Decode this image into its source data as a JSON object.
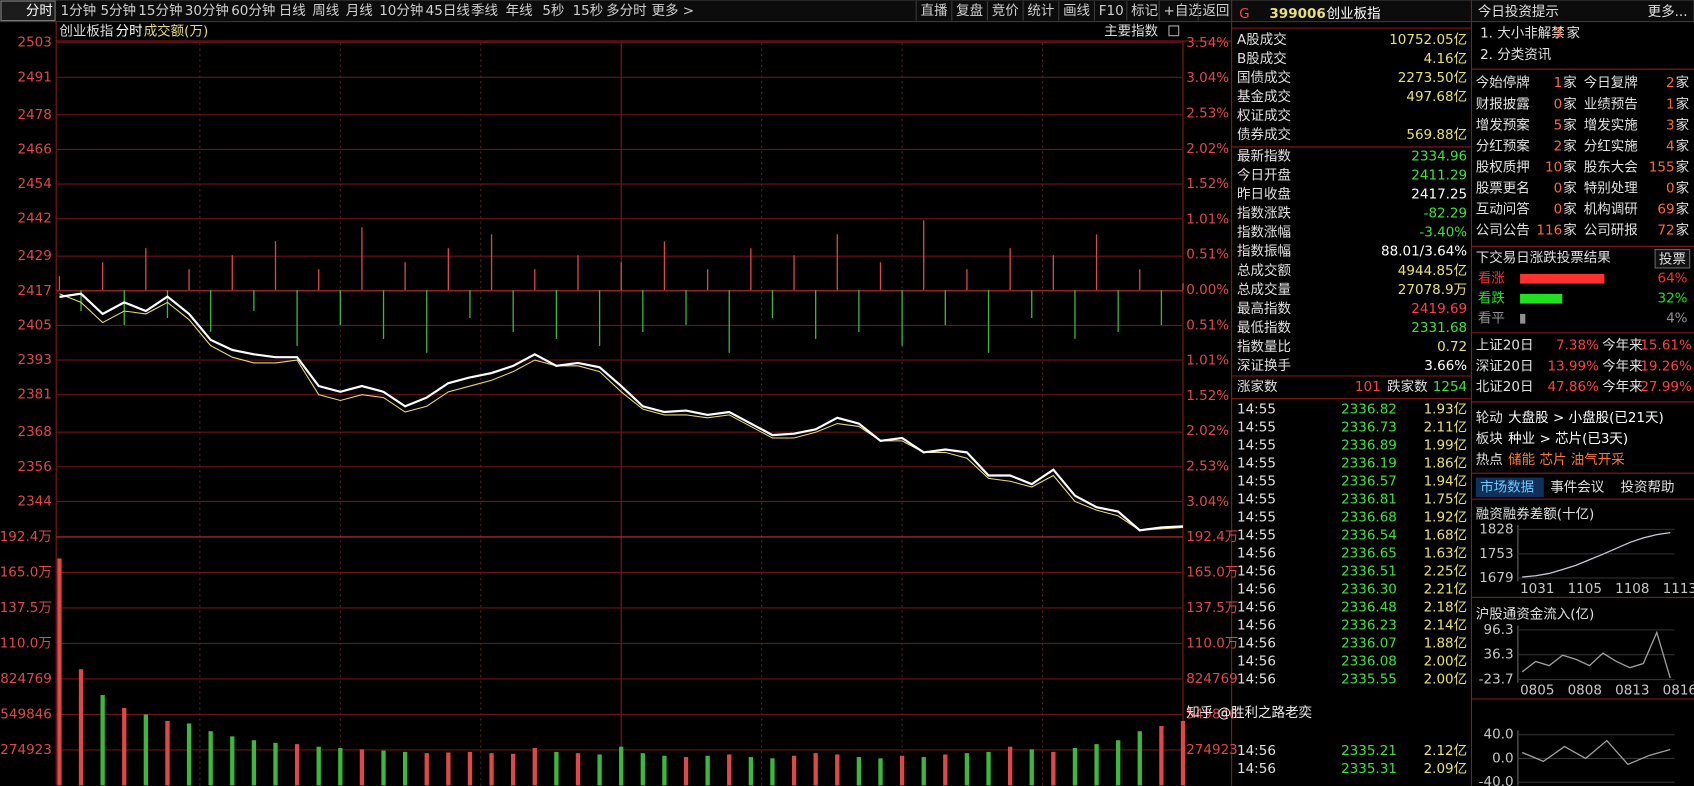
{
  "toolbar": {
    "periods": [
      "分时",
      "1分钟",
      "5分钟",
      "15分钟",
      "30分钟",
      "60分钟",
      "日线",
      "周线",
      "月线",
      "10分钟",
      "45日线",
      "季线",
      "年线",
      "5秒",
      "15秒",
      "多分时",
      "更多 >"
    ],
    "tools": [
      "直播",
      "复盘",
      "竞价",
      "统计",
      "画线",
      "F10",
      "标记",
      "+自选",
      "返回"
    ]
  },
  "chart_data": {
    "type": "line",
    "title": "创业板指",
    "subtitle": "分时",
    "volume_label": "成交额(万)",
    "index_button": "主要指数",
    "ylim": [
      2331.7,
      2502.8
    ],
    "yticks": [
      2503,
      2491,
      2478,
      2466,
      2454,
      2442,
      2429,
      2417,
      2405,
      2393,
      2381,
      2368,
      2356,
      2344
    ],
    "y2lim": [
      -3.54,
      3.54
    ],
    "y2ticks": [
      {
        "value": 3.54,
        "label": "3.54%"
      },
      {
        "value": 3.04,
        "label": "3.04%"
      },
      {
        "value": 2.53,
        "label": "2.53%"
      },
      {
        "value": 2.02,
        "label": "2.02%"
      },
      {
        "value": 1.52,
        "label": "1.52%"
      },
      {
        "value": 1.01,
        "label": "1.01%"
      },
      {
        "value": 0.51,
        "label": "0.51%"
      },
      {
        "value": 0,
        "label": "0.00%"
      },
      {
        "value": -0.51,
        "label": "0.51%"
      },
      {
        "value": -1.01,
        "label": "1.01%"
      },
      {
        "value": -1.52,
        "label": "1.52%"
      },
      {
        "value": -2.02,
        "label": "2.02%"
      },
      {
        "value": -2.53,
        "label": "2.53%"
      },
      {
        "value": -3.04,
        "label": "3.04%"
      }
    ],
    "grid": true,
    "series": [
      {
        "color": "#ffffff",
        "values": [
          2414.9,
          2416,
          2409,
          2413,
          2410,
          2415,
          2409,
          2400,
          2396.5,
          2395,
          2394,
          2394,
          2384,
          2382,
          2384,
          2382,
          2377,
          2380,
          2385,
          2387,
          2388.5,
          2391,
          2395,
          2391,
          2392,
          2390.5,
          2384,
          2377,
          2375,
          2375.5,
          2374,
          2375,
          2371,
          2367,
          2367.5,
          2369,
          2373,
          2371,
          2365,
          2366,
          2361,
          2362,
          2361,
          2353,
          2353,
          2350,
          2355,
          2346,
          2342,
          2340.5,
          2334,
          2335,
          2335.4
        ]
      },
      {
        "color": "#e8d870",
        "values": [
          2416,
          2413,
          2406,
          2410,
          2409,
          2413,
          2407,
          2398,
          2394,
          2392,
          2392,
          2393,
          2381,
          2379,
          2381,
          2380,
          2375,
          2377,
          2382,
          2384,
          2386,
          2389,
          2393,
          2391,
          2391,
          2389,
          2382,
          2376,
          2374,
          2374,
          2373,
          2374,
          2370,
          2366,
          2366,
          2368,
          2371,
          2370,
          2365,
          2365,
          2361,
          2361,
          2359,
          2352,
          2351,
          2349,
          2353,
          2344,
          2341,
          2339,
          2334,
          2334.5,
          2335
        ]
      }
    ],
    "breadth": {
      "up_color": "#e04848",
      "down_color": "#3cb83c",
      "values": [
        0.2,
        -0.3,
        0.4,
        -0.5,
        0.6,
        -0.4,
        0.3,
        -0.6,
        0.5,
        -0.3,
        0.7,
        -0.8,
        0.3,
        -0.5,
        0.9,
        -0.7,
        0.4,
        -0.9,
        0.6,
        -0.4,
        0.8,
        -0.6,
        0.3,
        -0.7,
        0.5,
        -0.8,
        0.4,
        -0.6,
        0.7,
        -0.5,
        0.3,
        -0.9,
        0.6,
        -0.4,
        0.5,
        -0.7,
        0.8,
        -0.6,
        0.4,
        -0.8,
        1.0,
        -0.5,
        0.3,
        -0.9,
        0.6,
        -0.4,
        0.5,
        -0.7,
        0.8,
        -0.6,
        0.3,
        -0.5,
        0.1
      ]
    },
    "volume": {
      "up_color": "#e04848",
      "down_color": "#3cb83c",
      "ylim": [
        0,
        1924461
      ],
      "yticks": [
        {
          "value": 1924461,
          "label": "192.4万"
        },
        {
          "value": 1649538,
          "label": "165.0万"
        },
        {
          "value": 1374615,
          "label": "137.5万"
        },
        {
          "value": 1099692,
          "label": "110.0万"
        },
        824769,
        549846,
        274923
      ],
      "values": [
        1758000,
        900000,
        700000,
        600000,
        550000,
        500000,
        480000,
        420000,
        380000,
        350000,
        330000,
        320000,
        300000,
        290000,
        280000,
        270000,
        260000,
        250000,
        255000,
        260000,
        250000,
        245000,
        290000,
        260000,
        250000,
        240000,
        300000,
        250000,
        230000,
        220000,
        230000,
        240000,
        220000,
        210000,
        230000,
        250000,
        240000,
        220000,
        210000,
        230000,
        220000,
        240000,
        250000,
        260000,
        300000,
        280000,
        260000,
        290000,
        320000,
        350000,
        420000,
        460000,
        500000
      ]
    }
  },
  "quote": {
    "flag": "G",
    "code": "399006",
    "name": "创业板指",
    "rows": [
      {
        "label": "A股成交",
        "value": "10752.05亿",
        "color": "#e8e070"
      },
      {
        "label": "B股成交",
        "value": "4.16亿",
        "color": "#e8e070"
      },
      {
        "label": "国债成交",
        "value": "2273.50亿",
        "color": "#e8e070"
      },
      {
        "label": "基金成交",
        "value": "497.68亿",
        "color": "#e8e070"
      },
      {
        "label": "权证成交"
      },
      {
        "label": "债券成交",
        "value": "569.88亿",
        "color": "#e8e070"
      },
      {
        "label": "最新指数",
        "value": "2334.96",
        "color": "#40e040"
      },
      {
        "label": "今日开盘",
        "value": "2411.29",
        "color": "#40e040"
      },
      {
        "label": "昨日收盘",
        "value": "2417.25",
        "color": "#ffffff"
      },
      {
        "label": "指数涨跌",
        "value": "-82.29",
        "color": "#40e040"
      },
      {
        "label": "指数涨幅",
        "value": "-3.40%",
        "color": "#40e040"
      },
      {
        "label": "指数振幅",
        "value": "88.01/3.64%",
        "color": "#ffffff"
      },
      {
        "label": "总成交额",
        "value": "4944.85亿",
        "color": "#e8e070"
      },
      {
        "label": "总成交量",
        "value": "27078.9万",
        "color": "#e8e070"
      },
      {
        "label": "最高指数",
        "value": "2419.69",
        "color": "#ff4040"
      },
      {
        "label": "最低指数",
        "value": "2331.68",
        "color": "#40e040"
      },
      {
        "label": "指数量比",
        "value": "0.72",
        "color": "#e8e070"
      },
      {
        "label": "深证换手",
        "value": "3.66%",
        "color": "#ffffff"
      }
    ],
    "up_label": "涨家数",
    "up": "101",
    "down_label": "跌家数",
    "down": "1254"
  },
  "ticks": [
    [
      "14:55",
      "2336.82",
      "1.93亿"
    ],
    [
      "14:55",
      "2336.73",
      "2.11亿"
    ],
    [
      "14:55",
      "2336.89",
      "1.99亿"
    ],
    [
      "14:55",
      "2336.19",
      "1.86亿"
    ],
    [
      "14:55",
      "2336.57",
      "1.94亿"
    ],
    [
      "14:55",
      "2336.81",
      "1.75亿"
    ],
    [
      "14:55",
      "2336.68",
      "1.92亿"
    ],
    [
      "14:55",
      "2336.54",
      "1.68亿"
    ],
    [
      "14:56",
      "2336.65",
      "1.63亿"
    ],
    [
      "14:56",
      "2336.51",
      "2.25亿"
    ],
    [
      "14:56",
      "2336.30",
      "2.21亿"
    ],
    [
      "14:56",
      "2336.48",
      "2.18亿"
    ],
    [
      "14:56",
      "2336.23",
      "2.14亿"
    ],
    [
      "14:56",
      "2336.07",
      "1.88亿"
    ],
    [
      "14:56",
      "2336.08",
      "2.00亿"
    ],
    [
      "14:56",
      "2335.55",
      "2.00亿"
    ],
    [
      "14:56",
      "2335.21",
      "2.12亿"
    ],
    [
      "14:56",
      "2335.31",
      "2.09亿"
    ]
  ],
  "tips": {
    "title": "今日投资提示",
    "more": "更多...",
    "items": [
      {
        "text": "1. 大小非解禁",
        "count": "3",
        "unit": "家"
      },
      {
        "text": "2. 分类资讯"
      }
    ]
  },
  "stats": [
    {
      "label": "今始停牌",
      "count": "1",
      "unit": "家"
    },
    {
      "label": "今日复牌",
      "count": "2",
      "unit": "家"
    },
    {
      "label": "财报披露",
      "count": "0",
      "unit": "家"
    },
    {
      "label": "业绩预告",
      "count": "1",
      "unit": "家"
    },
    {
      "label": "增发预案",
      "count": "5",
      "unit": "家"
    },
    {
      "label": "增发实施",
      "count": "3",
      "unit": "家"
    },
    {
      "label": "分红预案",
      "count": "2",
      "unit": "家"
    },
    {
      "label": "分红实施",
      "count": "4",
      "unit": "家"
    },
    {
      "label": "股权质押",
      "count": "10",
      "unit": "家"
    },
    {
      "label": "股东大会",
      "count": "155",
      "unit": "家"
    },
    {
      "label": "股票更名",
      "count": "0",
      "unit": "家"
    },
    {
      "label": "特别处理",
      "count": "0",
      "unit": "家"
    },
    {
      "label": "互动问答",
      "count": "0",
      "unit": "家"
    },
    {
      "label": "机构调研",
      "count": "69",
      "unit": "家"
    },
    {
      "label": "公司公告",
      "count": "116",
      "unit": "家"
    },
    {
      "label": "公司研报",
      "count": "72",
      "unit": "家"
    }
  ],
  "vote": {
    "title": "下交易日涨跌投票结果",
    "button": "投票",
    "items": [
      {
        "label": "看涨",
        "value": 64,
        "value_label": "64%",
        "color": "#ff3030"
      },
      {
        "label": "看跌",
        "value": 32,
        "value_label": "32%",
        "color": "#20e020"
      },
      {
        "label": "看平",
        "value": 4,
        "value_label": "4%",
        "color": "#909090"
      }
    ]
  },
  "returns": [
    {
      "label": "上证20日",
      "value": "7.38%",
      "ytd_label": "今年来",
      "ytd": "15.61%"
    },
    {
      "label": "深证20日",
      "value": "13.99%",
      "ytd_label": "今年来",
      "ytd": "19.26%"
    },
    {
      "label": "北证20日",
      "value": "47.86%",
      "ytd_label": "今年来",
      "ytd": "27.99%"
    }
  ],
  "rotation": [
    {
      "label": "轮动",
      "text": "大盘股 > 小盘股(已21天)"
    },
    {
      "label": "板块",
      "text": "种业 > 芯片(已3天)"
    },
    {
      "label": "热点",
      "text": "储能 芯片 油气开采"
    }
  ],
  "tabs": [
    "市场数据",
    "事件会议",
    "投资帮助"
  ],
  "mini_charts": [
    {
      "type": "line",
      "title": "融资融券差额(十亿)",
      "color": "#c8c8d8",
      "ylim": [
        1679,
        1828
      ],
      "yticks": [
        1828,
        1753,
        1679
      ],
      "xlabels": [
        "1031",
        "1105",
        "1108",
        "1113"
      ],
      "values": [
        1682,
        1686,
        1693,
        1705,
        1718,
        1735,
        1752,
        1770,
        1788,
        1802,
        1812,
        1818
      ]
    },
    {
      "type": "line",
      "title": "沪股通资金流入(亿)",
      "color": "#a0a0a0",
      "ylim": [
        -23.7,
        96.3
      ],
      "yticks": [
        96.3,
        36.3,
        -23.7
      ],
      "xlabels": [
        "0805",
        "0808",
        "0813",
        "0816"
      ],
      "values": [
        -5,
        20,
        10,
        35,
        25,
        10,
        40,
        20,
        5,
        15,
        90,
        -20
      ]
    },
    {
      "type": "line",
      "color": "#a0a0a0",
      "ylim": [
        -40,
        40
      ],
      "yticks": [
        {
          "value": 40,
          "label": "40.0"
        },
        {
          "value": 0,
          "label": "0.0"
        },
        {
          "value": -40,
          "label": "-40.0"
        }
      ],
      "values": [
        10,
        -5,
        20,
        0,
        30,
        -10,
        5,
        15
      ]
    }
  ],
  "watermark": "知乎 @胜利之路老奕"
}
